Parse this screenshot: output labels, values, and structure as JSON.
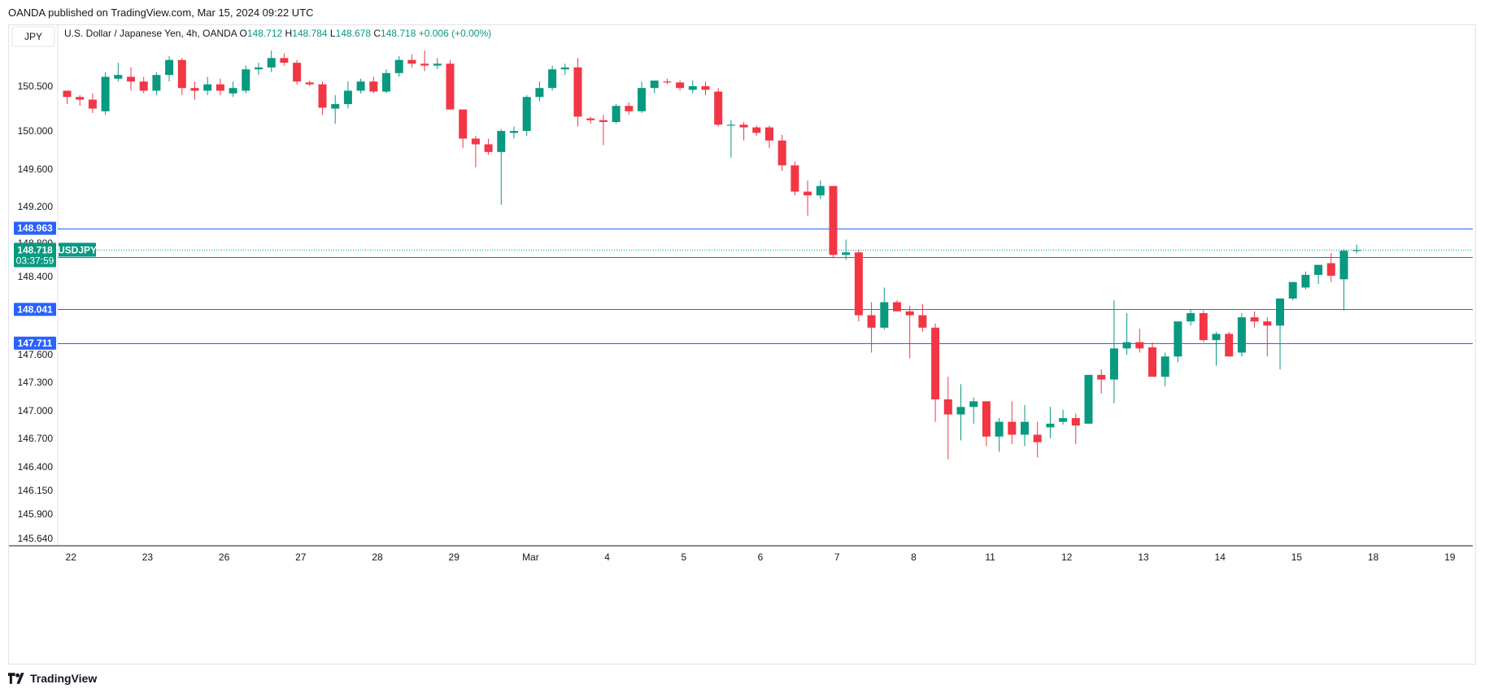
{
  "published_by": "OANDA published on TradingView.com, Mar 15, 2024 09:22 UTC",
  "footer_brand": "TradingView",
  "footer_icon": "tradingview-logo-icon",
  "currency_box": "JPY",
  "legend": {
    "title": "U.S. Dollar / Japanese Yen, 4h, OANDA",
    "o_label": "O",
    "o_value": "148.712",
    "h_label": "H",
    "h_value": "148.784",
    "l_label": "L",
    "l_value": "148.678",
    "c_label": "C",
    "c_value": "148.718",
    "change": "+0.006 (+0.00%)"
  },
  "colors": {
    "up": "#089981",
    "down": "#f23645",
    "level_line": "#2962ff",
    "label_bg": "#2962ff",
    "price_tag": "#089981"
  },
  "price_tag": {
    "price": "148.718",
    "countdown": "03:37:59",
    "symbol": "USDJPY",
    "value": 148.718
  },
  "chart_data": {
    "type": "candlestick",
    "title": "U.S. Dollar / Japanese Yen, 4h, OANDA",
    "ylim": [
      145.5,
      151.15
    ],
    "y_ticks": [
      150.5,
      150.0,
      149.6,
      149.2,
      148.8,
      148.4,
      147.6,
      147.3,
      147.0,
      146.7,
      146.4,
      146.15,
      145.9,
      145.64
    ],
    "y_tick_labels": [
      "150.500",
      "150.000",
      "149.600",
      "149.200",
      "148.800",
      "148.400",
      "147.600",
      "147.300",
      "147.000",
      "146.700",
      "146.400",
      "146.150",
      "145.900",
      "145.640"
    ],
    "x_ticks": [
      {
        "label": "22",
        "index": 0.3
      },
      {
        "label": "23",
        "index": 6.3
      },
      {
        "label": "26",
        "index": 12.3
      },
      {
        "label": "27",
        "index": 18.3
      },
      {
        "label": "28",
        "index": 24.3
      },
      {
        "label": "29",
        "index": 30.3
      },
      {
        "label": "Mar",
        "index": 36.3
      },
      {
        "label": "4",
        "index": 42.3
      },
      {
        "label": "5",
        "index": 48.3
      },
      {
        "label": "6",
        "index": 54.3
      },
      {
        "label": "7",
        "index": 60.3
      },
      {
        "label": "8",
        "index": 66.3
      },
      {
        "label": "11",
        "index": 72.3
      },
      {
        "label": "12",
        "index": 78.3
      },
      {
        "label": "13",
        "index": 84.3
      },
      {
        "label": "14",
        "index": 90.3
      },
      {
        "label": "15",
        "index": 96.3
      },
      {
        "label": "18",
        "index": 102.3
      },
      {
        "label": "19",
        "index": 108.3
      }
    ],
    "horizontal_levels": [
      148.963,
      148.631,
      148.041,
      147.711
    ],
    "level_labels": [
      "148.963",
      "148.631",
      "148.041",
      "147.711"
    ],
    "current_price": 148.718,
    "candles": [
      [
        150.45,
        150.45,
        150.3,
        150.38
      ],
      [
        150.38,
        150.4,
        150.28,
        150.35
      ],
      [
        150.35,
        150.42,
        150.2,
        150.25
      ],
      [
        150.22,
        150.65,
        150.18,
        150.6
      ],
      [
        150.58,
        150.75,
        150.55,
        150.62
      ],
      [
        150.6,
        150.7,
        150.45,
        150.55
      ],
      [
        150.55,
        150.6,
        150.42,
        150.45
      ],
      [
        150.45,
        150.65,
        150.4,
        150.62
      ],
      [
        150.62,
        150.82,
        150.55,
        150.78
      ],
      [
        150.78,
        150.8,
        150.4,
        150.48
      ],
      [
        150.48,
        150.55,
        150.35,
        150.45
      ],
      [
        150.45,
        150.6,
        150.4,
        150.52
      ],
      [
        150.52,
        150.58,
        150.4,
        150.45
      ],
      [
        150.42,
        150.55,
        150.38,
        150.48
      ],
      [
        150.45,
        150.72,
        150.42,
        150.68
      ],
      [
        150.68,
        150.75,
        150.62,
        150.7
      ],
      [
        150.7,
        150.88,
        150.65,
        150.8
      ],
      [
        150.8,
        150.85,
        150.72,
        150.75
      ],
      [
        150.75,
        150.78,
        150.52,
        150.55
      ],
      [
        150.54,
        150.56,
        150.5,
        150.52
      ],
      [
        150.52,
        150.55,
        150.18,
        150.26
      ],
      [
        150.25,
        150.4,
        150.08,
        150.3
      ],
      [
        150.3,
        150.55,
        150.25,
        150.45
      ],
      [
        150.45,
        150.58,
        150.42,
        150.55
      ],
      [
        150.55,
        150.6,
        150.42,
        150.44
      ],
      [
        150.44,
        150.68,
        150.42,
        150.64
      ],
      [
        150.64,
        150.82,
        150.6,
        150.78
      ],
      [
        150.78,
        150.84,
        150.7,
        150.74
      ],
      [
        150.74,
        150.88,
        150.66,
        150.72
      ],
      [
        150.72,
        150.8,
        150.68,
        150.74
      ],
      [
        150.74,
        150.78,
        150.24,
        150.24
      ],
      [
        150.24,
        150.24,
        149.82,
        149.92
      ],
      [
        149.92,
        149.95,
        149.62,
        149.86
      ],
      [
        149.86,
        149.92,
        149.75,
        149.78
      ],
      [
        149.78,
        150.02,
        149.22,
        150.0
      ],
      [
        149.98,
        150.05,
        149.92,
        150.0
      ],
      [
        150.0,
        150.4,
        149.95,
        150.38
      ],
      [
        150.38,
        150.55,
        150.33,
        150.48
      ],
      [
        150.48,
        150.72,
        150.45,
        150.68
      ],
      [
        150.68,
        150.74,
        150.62,
        150.7
      ],
      [
        150.7,
        150.8,
        150.05,
        150.16
      ],
      [
        150.14,
        150.16,
        150.08,
        150.12
      ],
      [
        150.12,
        150.18,
        149.85,
        150.1
      ],
      [
        150.1,
        150.3,
        150.08,
        150.28
      ],
      [
        150.28,
        150.32,
        150.18,
        150.22
      ],
      [
        150.22,
        150.55,
        150.2,
        150.48
      ],
      [
        150.48,
        150.56,
        150.42,
        150.56
      ],
      [
        150.55,
        150.58,
        150.52,
        150.54
      ],
      [
        150.54,
        150.56,
        150.45,
        150.48
      ],
      [
        150.46,
        150.56,
        150.42,
        150.5
      ],
      [
        150.5,
        150.55,
        150.4,
        150.46
      ],
      [
        150.44,
        150.48,
        150.05,
        150.07
      ],
      [
        150.07,
        150.12,
        149.72,
        150.07
      ],
      [
        150.07,
        150.1,
        149.9,
        150.04
      ],
      [
        150.04,
        150.06,
        149.95,
        149.98
      ],
      [
        150.04,
        150.06,
        149.82,
        149.9
      ],
      [
        149.9,
        149.96,
        149.58,
        149.64
      ],
      [
        149.64,
        149.68,
        149.32,
        149.36
      ],
      [
        149.36,
        149.48,
        149.1,
        149.32
      ],
      [
        149.32,
        149.48,
        149.28,
        149.42
      ],
      [
        149.42,
        149.42,
        148.62,
        148.66
      ],
      [
        148.66,
        148.84,
        148.6,
        148.69
      ],
      [
        148.69,
        148.72,
        147.92,
        147.98
      ],
      [
        147.98,
        148.12,
        147.62,
        147.86
      ],
      [
        147.86,
        148.28,
        147.84,
        148.12
      ],
      [
        148.12,
        148.14,
        148.02,
        148.02
      ],
      [
        148.02,
        148.08,
        147.56,
        147.98
      ],
      [
        147.98,
        148.1,
        147.82,
        147.86
      ],
      [
        147.86,
        147.9,
        146.88,
        147.12
      ],
      [
        147.12,
        147.36,
        146.48,
        146.96
      ],
      [
        146.96,
        147.28,
        146.68,
        147.04
      ],
      [
        147.04,
        147.14,
        146.86,
        147.1
      ],
      [
        147.1,
        147.1,
        146.62,
        146.72
      ],
      [
        146.72,
        146.92,
        146.56,
        146.88
      ],
      [
        146.88,
        147.1,
        146.64,
        146.74
      ],
      [
        146.74,
        147.06,
        146.62,
        146.88
      ],
      [
        146.74,
        146.88,
        146.5,
        146.66
      ],
      [
        146.82,
        147.04,
        146.7,
        146.86
      ],
      [
        146.88,
        147.01,
        146.85,
        146.92
      ],
      [
        146.92,
        146.97,
        146.64,
        146.84
      ],
      [
        146.86,
        147.38,
        146.86,
        147.38
      ],
      [
        147.38,
        147.44,
        147.18,
        147.33
      ],
      [
        147.33,
        148.14,
        147.08,
        147.66
      ],
      [
        147.66,
        148.0,
        147.6,
        147.72
      ],
      [
        147.72,
        147.85,
        147.62,
        147.66
      ],
      [
        147.67,
        147.72,
        147.36,
        147.36
      ],
      [
        147.36,
        147.62,
        147.26,
        147.58
      ],
      [
        147.58,
        147.92,
        147.52,
        147.92
      ],
      [
        147.92,
        148.04,
        147.88,
        148.0
      ],
      [
        148.0,
        148.03,
        147.72,
        147.74
      ],
      [
        147.74,
        147.82,
        147.48,
        147.8
      ],
      [
        147.8,
        147.82,
        147.58,
        147.58
      ],
      [
        147.62,
        148.0,
        147.58,
        147.96
      ],
      [
        147.96,
        148.02,
        147.86,
        147.92
      ],
      [
        147.92,
        147.96,
        147.58,
        147.88
      ],
      [
        147.88,
        148.15,
        147.44,
        148.16
      ],
      [
        148.16,
        148.34,
        148.14,
        148.34
      ],
      [
        148.28,
        148.46,
        148.26,
        148.42
      ],
      [
        148.42,
        148.54,
        148.32,
        148.54
      ],
      [
        148.56,
        148.68,
        148.34,
        148.41
      ],
      [
        148.37,
        148.73,
        148.03,
        148.71
      ],
      [
        148.712,
        148.784,
        148.678,
        148.718
      ]
    ]
  }
}
